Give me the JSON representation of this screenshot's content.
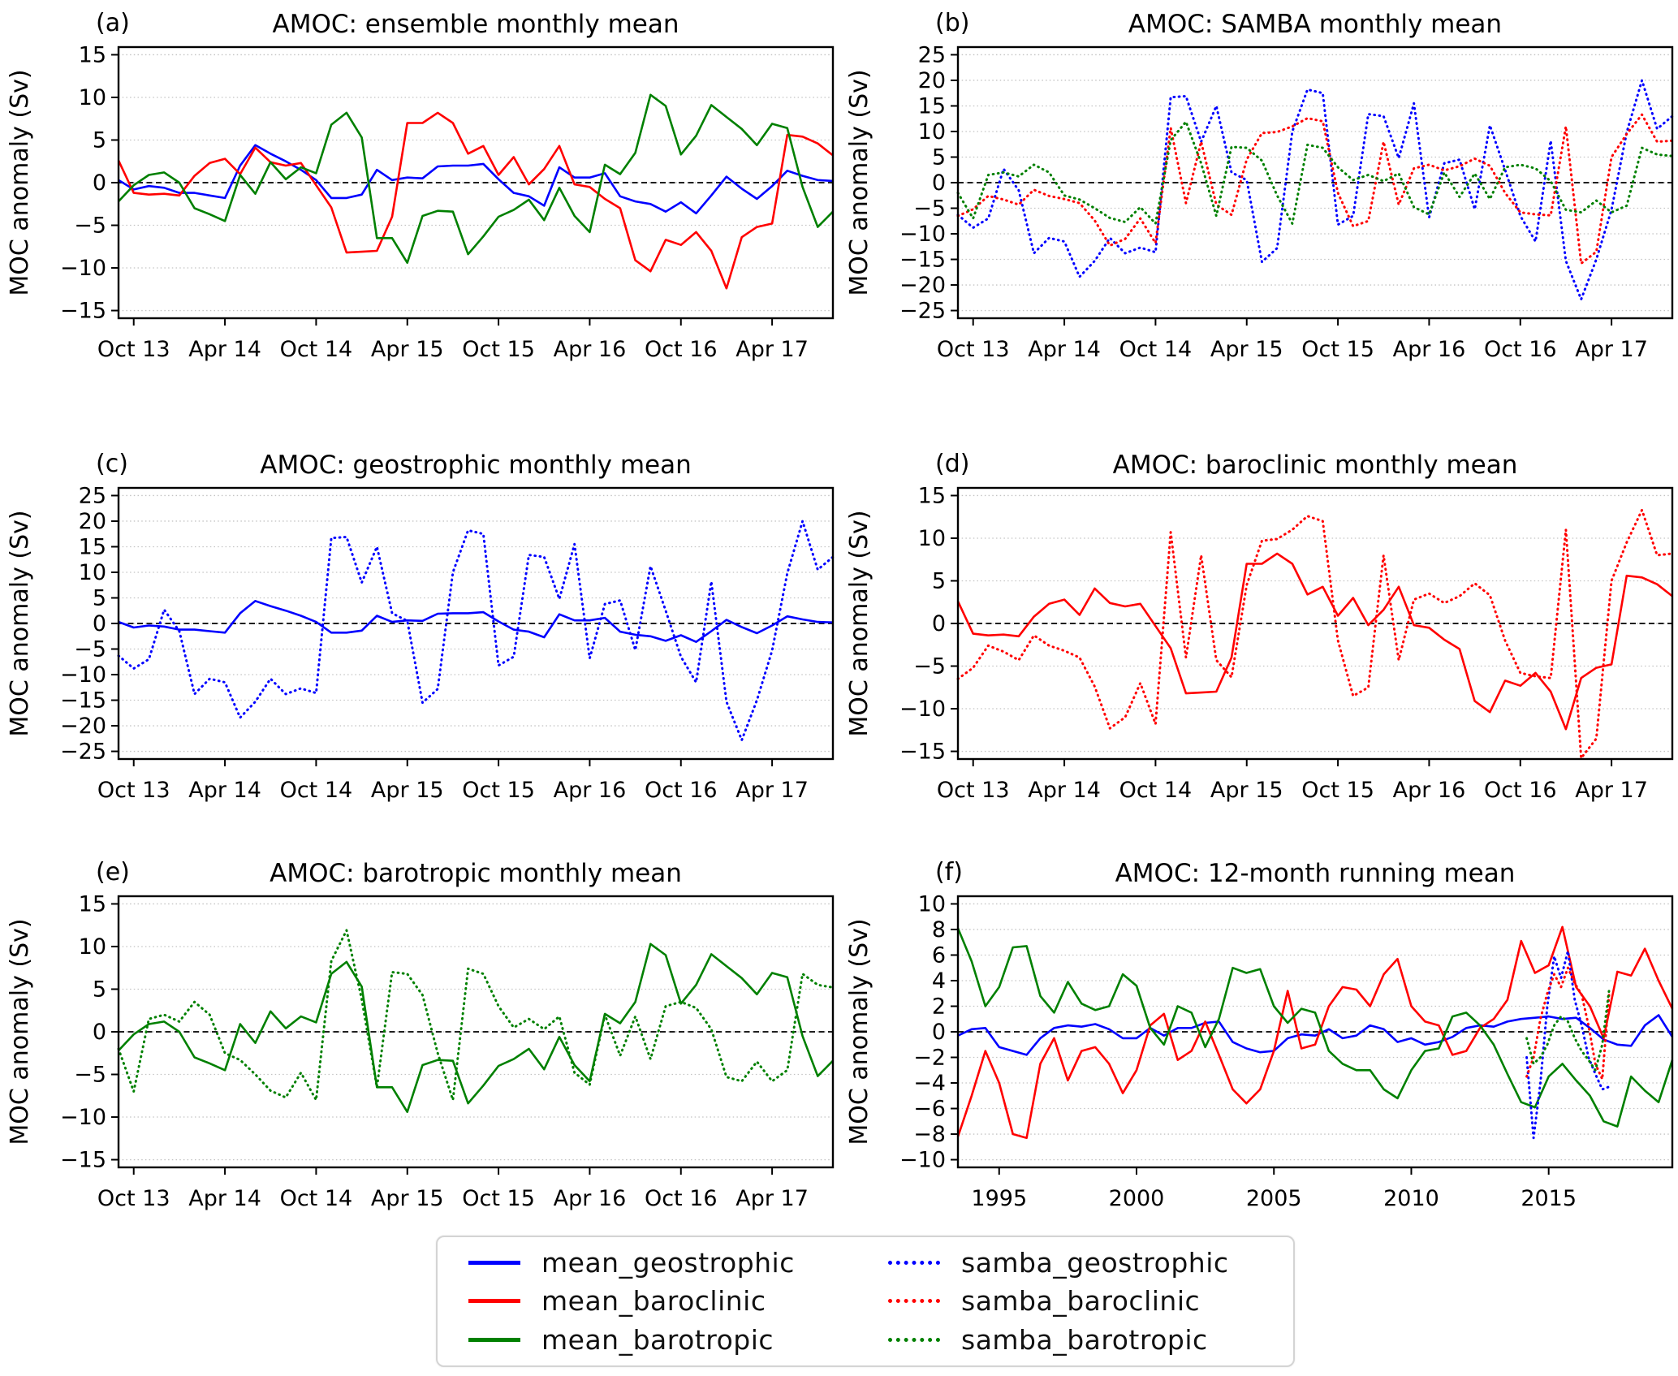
{
  "figure": {
    "ylabel": "MOC anomaly (Sv)",
    "month_tick_labels": [
      "Oct 13",
      "Apr 14",
      "Oct 14",
      "Apr 15",
      "Oct 15",
      "Apr 16",
      "Oct 16",
      "Apr 17"
    ]
  },
  "legend": {
    "items": [
      {
        "label": "mean_geostrophic",
        "color": "#0000ff",
        "style": "solid"
      },
      {
        "label": "mean_baroclinic",
        "color": "#ff0000",
        "style": "solid"
      },
      {
        "label": "mean_barotropic",
        "color": "#008000",
        "style": "solid"
      },
      {
        "label": "samba_geostrophic",
        "color": "#0000ff",
        "style": "dotted"
      },
      {
        "label": "samba_baroclinic",
        "color": "#ff0000",
        "style": "dotted"
      },
      {
        "label": "samba_barotropic",
        "color": "#008000",
        "style": "dotted"
      }
    ]
  },
  "chart_data": {
    "type": "line",
    "month_axis": {
      "categories": [
        "Sep 13",
        "Oct 13",
        "Nov 13",
        "Dec 13",
        "Jan 14",
        "Feb 14",
        "Mar 14",
        "Apr 14",
        "May 14",
        "Jun 14",
        "Jul 14",
        "Aug 14",
        "Sep 14",
        "Oct 14",
        "Nov 14",
        "Dec 14",
        "Jan 15",
        "Feb 15",
        "Mar 15",
        "Apr 15",
        "May 15",
        "Jun 15",
        "Jul 15",
        "Aug 15",
        "Sep 15",
        "Oct 15",
        "Nov 15",
        "Dec 15",
        "Jan 16",
        "Feb 16",
        "Mar 16",
        "Apr 16",
        "May 16",
        "Jun 16",
        "Jul 16",
        "Aug 16",
        "Sep 16",
        "Oct 16",
        "Nov 16",
        "Dec 16",
        "Jan 17",
        "Feb 17",
        "Mar 17",
        "Apr 17",
        "May 17",
        "Jun 17",
        "Jul 17",
        "Aug 17"
      ],
      "tick_indices": [
        1,
        7,
        13,
        19,
        25,
        31,
        37,
        43
      ],
      "tick_labels": [
        "Oct 13",
        "Apr 14",
        "Oct 14",
        "Apr 15",
        "Oct 15",
        "Apr 16",
        "Oct 16",
        "Apr 17"
      ]
    },
    "monthly_series": {
      "mean_geostrophic": {
        "color": "#0000ff",
        "style": "solid",
        "values": [
          0.3,
          -0.8,
          -0.4,
          -0.6,
          -1.2,
          -1.2,
          -1.5,
          -1.8,
          2.0,
          4.4,
          3.4,
          2.5,
          1.5,
          0.3,
          -1.8,
          -1.8,
          -1.4,
          1.5,
          0.3,
          0.6,
          0.5,
          1.9,
          2.0,
          2.0,
          2.2,
          0.4,
          -1.2,
          -1.6,
          -2.7,
          1.8,
          0.6,
          0.6,
          1.1,
          -1.6,
          -2.2,
          -2.5,
          -3.4,
          -2.3,
          -3.6,
          -1.5,
          0.7,
          -0.7,
          -1.9,
          -0.4,
          1.4,
          0.8,
          0.3,
          0.2
        ]
      },
      "mean_baroclinic": {
        "color": "#ff0000",
        "style": "solid",
        "values": [
          2.6,
          -1.2,
          -1.4,
          -1.3,
          -1.5,
          0.8,
          2.3,
          2.8,
          1.0,
          4.1,
          2.4,
          2.0,
          2.3,
          -0.3,
          -2.9,
          -8.2,
          -8.1,
          -8.0,
          -4.0,
          7.0,
          7.0,
          8.2,
          7.0,
          3.4,
          4.3,
          0.9,
          3.0,
          -0.2,
          1.6,
          4.3,
          -0.2,
          -0.5,
          -1.9,
          -3.0,
          -9.1,
          -10.4,
          -6.7,
          -7.3,
          -5.8,
          -8.0,
          -12.4,
          -6.4,
          -5.2,
          -4.8,
          5.6,
          5.4,
          4.6,
          3.2
        ]
      },
      "mean_barotropic": {
        "color": "#008000",
        "style": "solid",
        "values": [
          -2.2,
          -0.3,
          0.9,
          1.2,
          0.0,
          -3.0,
          -3.7,
          -4.5,
          0.9,
          -1.3,
          2.4,
          0.4,
          1.8,
          1.1,
          6.8,
          8.2,
          5.3,
          -6.5,
          -6.5,
          -9.4,
          -3.9,
          -3.3,
          -3.4,
          -8.4,
          -6.3,
          -4.0,
          -3.2,
          -2.0,
          -4.4,
          -0.6,
          -3.9,
          -5.8,
          2.1,
          1.0,
          3.5,
          10.3,
          9.0,
          3.3,
          5.5,
          9.1,
          7.7,
          6.3,
          4.4,
          6.9,
          6.4,
          -0.5,
          -5.2,
          -3.4
        ]
      },
      "samba_geostrophic": {
        "color": "#0000ff",
        "style": "dotted",
        "values": [
          -6.3,
          -8.8,
          -7.0,
          2.7,
          -1.5,
          -13.8,
          -10.8,
          -11.5,
          -18.4,
          -15.3,
          -10.8,
          -13.8,
          -12.7,
          -13.6,
          16.7,
          16.9,
          8.0,
          15.0,
          2.0,
          0.5,
          -15.5,
          -12.8,
          10.0,
          18.2,
          17.5,
          -8.2,
          -6.5,
          13.4,
          13.0,
          4.8,
          15.5,
          -6.8,
          3.8,
          4.5,
          -5.2,
          11.2,
          2.5,
          -6.5,
          -11.5,
          8.2,
          -15.3,
          -22.8,
          -15.0,
          -5.3,
          9.8,
          20.0,
          10.5,
          13.0
        ]
      },
      "samba_baroclinic": {
        "color": "#ff0000",
        "style": "dotted",
        "values": [
          -6.5,
          -5.2,
          -2.6,
          -3.3,
          -4.3,
          -1.4,
          -2.6,
          -3.2,
          -4.0,
          -7.4,
          -12.3,
          -11.0,
          -7.0,
          -11.8,
          10.7,
          -4.0,
          8.0,
          -4.3,
          -6.3,
          4.5,
          9.7,
          9.9,
          11.0,
          12.6,
          12.0,
          -2.0,
          -8.5,
          -7.5,
          8.0,
          -4.3,
          2.8,
          3.5,
          2.4,
          3.2,
          4.7,
          3.3,
          -2.0,
          -5.8,
          -6.2,
          -6.4,
          11.0,
          -15.8,
          -13.5,
          5.0,
          9.5,
          13.3,
          8.0,
          8.2
        ]
      },
      "samba_barotropic": {
        "color": "#008000",
        "style": "dotted",
        "values": [
          -2.0,
          -7.0,
          1.5,
          2.0,
          1.2,
          3.5,
          2.0,
          -2.5,
          -3.3,
          -5.0,
          -6.9,
          -7.7,
          -4.8,
          -8.0,
          8.3,
          11.9,
          3.8,
          -6.5,
          7.0,
          6.8,
          4.3,
          -2.5,
          -8.0,
          7.4,
          6.8,
          3.0,
          0.5,
          1.5,
          0.3,
          1.8,
          -4.8,
          -6.2,
          2.0,
          -2.8,
          1.8,
          -3.2,
          3.0,
          3.5,
          2.8,
          0.3,
          -5.3,
          -5.8,
          -3.5,
          -5.8,
          -4.5,
          6.8,
          5.5,
          5.2
        ]
      }
    },
    "panels": [
      {
        "id": "a",
        "letter": "(a)",
        "title": "AMOC: ensemble monthly mean",
        "ylabel": "MOC anomaly (Sv)",
        "x_mode": "months",
        "ylim": [
          -15.9,
          15.9
        ],
        "yticks": [
          -15,
          -10,
          -5,
          0,
          5,
          10,
          15
        ],
        "series": [
          "mean_geostrophic",
          "mean_baroclinic",
          "mean_barotropic"
        ]
      },
      {
        "id": "b",
        "letter": "(b)",
        "title": "AMOC: SAMBA monthly mean",
        "ylabel": "MOC anomaly (Sv)",
        "x_mode": "months",
        "ylim": [
          -26.5,
          26.5
        ],
        "yticks": [
          -25,
          -20,
          -15,
          -10,
          -5,
          0,
          5,
          10,
          15,
          20,
          25
        ],
        "series": [
          "samba_geostrophic",
          "samba_baroclinic",
          "samba_barotropic"
        ]
      },
      {
        "id": "c",
        "letter": "(c)",
        "title": "AMOC: geostrophic monthly mean",
        "ylabel": "MOC anomaly (Sv)",
        "x_mode": "months",
        "ylim": [
          -26.5,
          26.5
        ],
        "yticks": [
          -25,
          -20,
          -15,
          -10,
          -5,
          0,
          5,
          10,
          15,
          20,
          25
        ],
        "series": [
          "samba_geostrophic",
          "mean_geostrophic"
        ]
      },
      {
        "id": "d",
        "letter": "(d)",
        "title": "AMOC: baroclinic monthly mean",
        "ylabel": "MOC anomaly (Sv)",
        "x_mode": "months",
        "ylim": [
          -15.9,
          15.9
        ],
        "yticks": [
          -15,
          -10,
          -5,
          0,
          5,
          10,
          15
        ],
        "series": [
          "samba_baroclinic",
          "mean_baroclinic"
        ]
      },
      {
        "id": "e",
        "letter": "(e)",
        "title": "AMOC: barotropic monthly mean",
        "ylabel": "MOC anomaly (Sv)",
        "x_mode": "months",
        "ylim": [
          -15.9,
          15.9
        ],
        "yticks": [
          -15,
          -10,
          -5,
          0,
          5,
          10,
          15
        ],
        "series": [
          "samba_barotropic",
          "mean_barotropic"
        ]
      },
      {
        "id": "f",
        "letter": "(f)",
        "title": "AMOC: 12-month running mean",
        "ylabel": "MOC anomaly (Sv)",
        "x_mode": "years",
        "xlim": [
          1993.5,
          2019.5
        ],
        "xticks": [
          1995,
          2000,
          2005,
          2010,
          2015
        ],
        "ylim": [
          -10.6,
          10.6
        ],
        "yticks": [
          -10,
          -8,
          -6,
          -4,
          -2,
          0,
          2,
          4,
          6,
          8,
          10
        ],
        "series_inline": [
          {
            "name": "mean_geostrophic",
            "color": "#0000ff",
            "style": "solid",
            "x_start": 1993.5,
            "x_step": 0.5,
            "y": [
              -0.3,
              0.2,
              0.3,
              -1.2,
              -1.5,
              -1.8,
              -0.5,
              0.3,
              0.5,
              0.4,
              0.6,
              0.2,
              -0.5,
              -0.5,
              0.3,
              -0.3,
              0.3,
              0.3,
              0.7,
              0.8,
              -0.8,
              -1.3,
              -1.6,
              -1.5,
              -0.5,
              -0.2,
              -0.3,
              0.2,
              -0.5,
              -0.3,
              0.5,
              0.2,
              -0.8,
              -0.5,
              -1.0,
              -0.8,
              -0.4,
              0.3,
              0.5,
              0.4,
              0.8,
              1.0,
              1.1,
              1.2,
              1.0,
              1.1,
              0.3,
              -0.6,
              -1.0,
              -1.1,
              0.5,
              1.3,
              -0.4
            ]
          },
          {
            "name": "mean_baroclinic",
            "color": "#ff0000",
            "style": "solid",
            "x_start": 1993.5,
            "x_step": 0.5,
            "y": [
              -8.2,
              -5.0,
              -1.5,
              -4.0,
              -8.0,
              -8.3,
              -2.5,
              -0.5,
              -3.8,
              -1.5,
              -1.2,
              -2.5,
              -4.8,
              -3.0,
              0.5,
              1.4,
              -2.2,
              -1.5,
              0.8,
              -1.8,
              -4.5,
              -5.6,
              -4.5,
              -1.5,
              3.2,
              -1.3,
              -1.0,
              2.0,
              3.5,
              3.3,
              2.0,
              4.5,
              5.7,
              2.0,
              0.8,
              0.5,
              -1.8,
              -1.5,
              0.3,
              1.0,
              2.5,
              7.1,
              4.6,
              5.2,
              8.2,
              3.5,
              2.0,
              -0.5,
              4.7,
              4.4,
              6.5,
              4.0,
              1.8
            ]
          },
          {
            "name": "mean_barotropic",
            "color": "#008000",
            "style": "solid",
            "x_start": 1993.5,
            "x_step": 0.5,
            "y": [
              8.1,
              5.5,
              2.0,
              3.5,
              6.6,
              6.7,
              2.8,
              1.5,
              3.9,
              2.2,
              1.7,
              2.0,
              4.5,
              3.6,
              0.3,
              -1.0,
              2.0,
              1.5,
              -1.2,
              1.0,
              5.0,
              4.6,
              4.9,
              2.0,
              0.7,
              1.8,
              1.5,
              -1.5,
              -2.5,
              -3.0,
              -3.0,
              -4.5,
              -5.2,
              -3.0,
              -1.5,
              -1.3,
              1.2,
              1.5,
              0.5,
              -1.0,
              -3.3,
              -5.5,
              -5.9,
              -3.5,
              -2.5,
              -3.8,
              -5.0,
              -7.0,
              -7.4,
              -3.5,
              -4.6,
              -5.5,
              -2.2
            ]
          },
          {
            "name": "samba_geostrophic",
            "color": "#0000ff",
            "style": "dotted",
            "x_start": 2014.2,
            "x_step": 0.25,
            "y": [
              -2.0,
              -8.3,
              -4.0,
              2.0,
              5.9,
              4.2,
              6.3,
              2.5,
              0.5,
              -2.0,
              -3.3,
              -4.5,
              -4.3
            ]
          },
          {
            "name": "samba_baroclinic",
            "color": "#ff0000",
            "style": "dotted",
            "x_start": 2014.2,
            "x_step": 0.25,
            "y": [
              -3.5,
              -2.0,
              1.0,
              3.0,
              4.5,
              3.5,
              5.0,
              3.8,
              2.9,
              0.5,
              -2.5,
              -3.7,
              3.0
            ]
          },
          {
            "name": "samba_barotropic",
            "color": "#008000",
            "style": "dotted",
            "x_start": 2014.2,
            "x_step": 0.25,
            "y": [
              -0.5,
              -2.5,
              -2.0,
              -1.0,
              0.5,
              1.2,
              0.8,
              -0.5,
              -1.5,
              -2.2,
              -3.0,
              -1.0,
              3.3
            ]
          }
        ]
      }
    ],
    "style": {
      "grid_color": "#c3c3c3",
      "zero_line_color": "#000000",
      "axis_color": "#000000"
    }
  }
}
